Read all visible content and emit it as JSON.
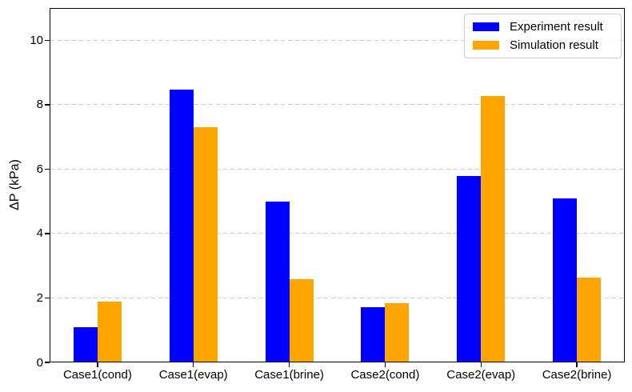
{
  "chart_data": {
    "type": "bar",
    "title": "",
    "xlabel": "",
    "ylabel": "ΔP (kPa)",
    "categories": [
      "Case1(cond)",
      "Case1(evap)",
      "Case1(brine)",
      "Case2(cond)",
      "Case2(evap)",
      "Case2(brine)"
    ],
    "series": [
      {
        "name": "Experiment result",
        "color": "#0000ff",
        "values": [
          1.05,
          8.47,
          4.97,
          1.69,
          5.78,
          5.06
        ]
      },
      {
        "name": "Simulation result",
        "color": "#ffa500",
        "values": [
          1.87,
          7.3,
          2.56,
          1.8,
          8.26,
          2.61
        ]
      }
    ],
    "ylim": [
      0,
      11
    ],
    "yticks": [
      0,
      2,
      4,
      6,
      8,
      10
    ],
    "grid": {
      "axis": "y",
      "style": "dashed",
      "color": "#c9c9c9",
      "at": [
        2,
        4,
        6,
        8,
        10
      ]
    },
    "legend": {
      "position": "upper right"
    }
  }
}
